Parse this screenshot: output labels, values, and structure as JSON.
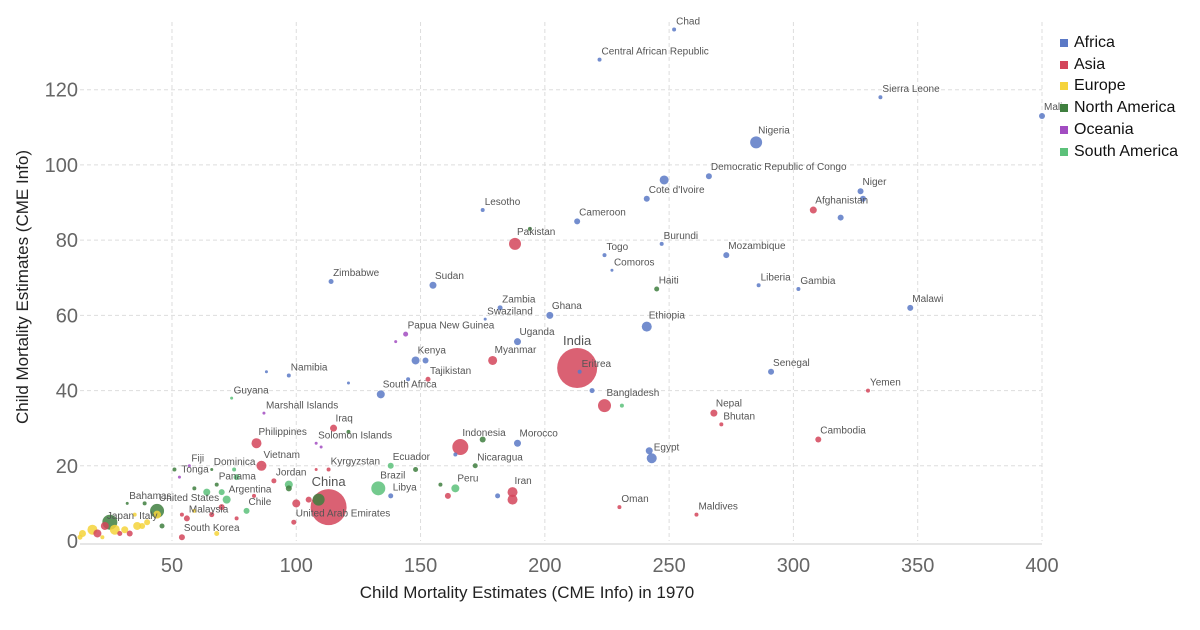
{
  "chart_data": {
    "type": "scatter",
    "title": "",
    "xlabel": "Child Mortality Estimates (CME Info) in 1970",
    "ylabel": "Child Mortality Estimates (CME Info)",
    "xlim": [
      13,
      400
    ],
    "ylim": [
      0,
      138
    ],
    "xticks": [
      50,
      100,
      150,
      200,
      250,
      300,
      350,
      400
    ],
    "yticks": [
      0,
      20,
      40,
      60,
      80,
      100,
      120
    ],
    "grid": true,
    "legend_position": "top-right",
    "colors": {
      "Africa": "#5b79c6",
      "Asia": "#d3455b",
      "Europe": "#f5d33b",
      "North America": "#3f7f3f",
      "Oceania": "#a24cc1",
      "South America": "#5cc17a"
    },
    "regions": [
      "Africa",
      "Asia",
      "Europe",
      "North America",
      "Oceania",
      "South America"
    ],
    "points": [
      {
        "label": "Chad",
        "x": 252,
        "y": 136,
        "region": "Africa",
        "size": 2
      },
      {
        "label": "Central African Republic",
        "x": 222,
        "y": 128,
        "region": "Africa",
        "size": 2
      },
      {
        "label": "Sierra Leone",
        "x": 335,
        "y": 118,
        "region": "Africa",
        "size": 2
      },
      {
        "label": "Mali",
        "x": 400,
        "y": 113,
        "region": "Africa",
        "size": 3
      },
      {
        "label": "Nigeria",
        "x": 285,
        "y": 106,
        "region": "Africa",
        "size": 6
      },
      {
        "label": "Democratic Republic of Congo",
        "x": 266,
        "y": 97,
        "region": "Africa",
        "size": 3
      },
      {
        "label": "",
        "x": 248,
        "y": 96,
        "region": "Africa",
        "size": 4.5
      },
      {
        "label": "Cote d'Ivoire",
        "x": 241,
        "y": 91,
        "region": "Africa",
        "size": 3
      },
      {
        "label": "Niger",
        "x": 327,
        "y": 93,
        "region": "Africa",
        "size": 3
      },
      {
        "label": "",
        "x": 328,
        "y": 91,
        "region": "Africa",
        "size": 3
      },
      {
        "label": "Afghanistan",
        "x": 308,
        "y": 88,
        "region": "Asia",
        "size": 3.5
      },
      {
        "label": "",
        "x": 319,
        "y": 86,
        "region": "Africa",
        "size": 3
      },
      {
        "label": "Lesotho",
        "x": 175,
        "y": 88,
        "region": "Africa",
        "size": 2
      },
      {
        "label": "Cameroon",
        "x": 213,
        "y": 85,
        "region": "Africa",
        "size": 3
      },
      {
        "label": "Pakistan",
        "x": 188,
        "y": 79,
        "region": "Asia",
        "size": 6
      },
      {
        "label": "",
        "x": 194,
        "y": 83,
        "region": "North America",
        "size": 2
      },
      {
        "label": "Burundi",
        "x": 247,
        "y": 79,
        "region": "Africa",
        "size": 2
      },
      {
        "label": "Togo",
        "x": 224,
        "y": 76,
        "region": "Africa",
        "size": 2
      },
      {
        "label": "Mozambique",
        "x": 273,
        "y": 76,
        "region": "Africa",
        "size": 3
      },
      {
        "label": "Comoros",
        "x": 227,
        "y": 72,
        "region": "Africa",
        "size": 1.5
      },
      {
        "label": "Zimbabwe",
        "x": 114,
        "y": 69,
        "region": "Africa",
        "size": 2.5
      },
      {
        "label": "Sudan",
        "x": 155,
        "y": 68,
        "region": "Africa",
        "size": 3.5
      },
      {
        "label": "Haiti",
        "x": 245,
        "y": 67,
        "region": "North America",
        "size": 2.5
      },
      {
        "label": "Liberia",
        "x": 286,
        "y": 68,
        "region": "Africa",
        "size": 2
      },
      {
        "label": "Gambia",
        "x": 302,
        "y": 67,
        "region": "Africa",
        "size": 2
      },
      {
        "label": "Zambia",
        "x": 182,
        "y": 62,
        "region": "Africa",
        "size": 2.5
      },
      {
        "label": "Swaziland",
        "x": 176,
        "y": 59,
        "region": "Africa",
        "size": 1.5
      },
      {
        "label": "Ghana",
        "x": 202,
        "y": 60,
        "region": "Africa",
        "size": 3.5
      },
      {
        "label": "Malawi",
        "x": 347,
        "y": 62,
        "region": "Africa",
        "size": 3
      },
      {
        "label": "Ethiopia",
        "x": 241,
        "y": 57,
        "region": "Africa",
        "size": 5
      },
      {
        "label": "Papua New Guinea",
        "x": 144,
        "y": 55,
        "region": "Oceania",
        "size": 2.5
      },
      {
        "label": "",
        "x": 140,
        "y": 53,
        "region": "Oceania",
        "size": 1.5
      },
      {
        "label": "Uganda",
        "x": 189,
        "y": 53,
        "region": "Africa",
        "size": 3.5
      },
      {
        "label": "Kenya",
        "x": 148,
        "y": 48,
        "region": "Africa",
        "size": 4
      },
      {
        "label": "",
        "x": 152,
        "y": 48,
        "region": "Africa",
        "size": 3
      },
      {
        "label": "Myanmar",
        "x": 179,
        "y": 48,
        "region": "Asia",
        "size": 4.5
      },
      {
        "label": "India",
        "x": 213,
        "y": 46,
        "region": "Asia",
        "size": 20
      },
      {
        "label": "Eritrea",
        "x": 214,
        "y": 45,
        "region": "Africa",
        "size": 2
      },
      {
        "label": "",
        "x": 88,
        "y": 45,
        "region": "Africa",
        "size": 1.5
      },
      {
        "label": "Namibia",
        "x": 97,
        "y": 44,
        "region": "Africa",
        "size": 2
      },
      {
        "label": "Tajikistan",
        "x": 153,
        "y": 43,
        "region": "Asia",
        "size": 2.5
      },
      {
        "label": "",
        "x": 145,
        "y": 43,
        "region": "Africa",
        "size": 2
      },
      {
        "label": "",
        "x": 121,
        "y": 42,
        "region": "Africa",
        "size": 1.5
      },
      {
        "label": "Senegal",
        "x": 291,
        "y": 45,
        "region": "Africa",
        "size": 3
      },
      {
        "label": "South Africa",
        "x": 134,
        "y": 39,
        "region": "Africa",
        "size": 4
      },
      {
        "label": "",
        "x": 219,
        "y": 40,
        "region": "Africa",
        "size": 2.5
      },
      {
        "label": "Bangladesh",
        "x": 224,
        "y": 36,
        "region": "Asia",
        "size": 6.5
      },
      {
        "label": "",
        "x": 231,
        "y": 36,
        "region": "South America",
        "size": 2
      },
      {
        "label": "Yemen",
        "x": 330,
        "y": 40,
        "region": "Asia",
        "size": 2
      },
      {
        "label": "Guyana",
        "x": 74,
        "y": 38,
        "region": "South America",
        "size": 1.5
      },
      {
        "label": "Marshall Islands",
        "x": 87,
        "y": 34,
        "region": "Oceania",
        "size": 1.5
      },
      {
        "label": "Nepal",
        "x": 268,
        "y": 34,
        "region": "Asia",
        "size": 3.5
      },
      {
        "label": "Bhutan",
        "x": 271,
        "y": 31,
        "region": "Asia",
        "size": 2
      },
      {
        "label": "Iraq",
        "x": 115,
        "y": 30,
        "region": "Asia",
        "size": 3.5
      },
      {
        "label": "",
        "x": 121,
        "y": 29,
        "region": "North America",
        "size": 2
      },
      {
        "label": "Cambodia",
        "x": 310,
        "y": 27,
        "region": "Asia",
        "size": 3
      },
      {
        "label": "Philippines",
        "x": 84,
        "y": 26,
        "region": "Asia",
        "size": 5
      },
      {
        "label": "Solomon Islands",
        "x": 108,
        "y": 26,
        "region": "Oceania",
        "size": 1.5
      },
      {
        "label": "",
        "x": 110,
        "y": 25,
        "region": "Oceania",
        "size": 1.5
      },
      {
        "label": "Indonesia",
        "x": 166,
        "y": 25,
        "region": "Asia",
        "size": 8
      },
      {
        "label": "",
        "x": 175,
        "y": 27,
        "region": "North America",
        "size": 3
      },
      {
        "label": "Morocco",
        "x": 189,
        "y": 26,
        "region": "Africa",
        "size": 3.5
      },
      {
        "label": "Egypt",
        "x": 243,
        "y": 22,
        "region": "Africa",
        "size": 5
      },
      {
        "label": "",
        "x": 242,
        "y": 24,
        "region": "Africa",
        "size": 3.5
      },
      {
        "label": "Fiji",
        "x": 57,
        "y": 20,
        "region": "Oceania",
        "size": 1.5
      },
      {
        "label": "Dominica",
        "x": 66,
        "y": 19,
        "region": "North America",
        "size": 1.5
      },
      {
        "label": "Vietnam",
        "x": 86,
        "y": 20,
        "region": "Asia",
        "size": 5
      },
      {
        "label": "Kyrgyzstan",
        "x": 113,
        "y": 19,
        "region": "Asia",
        "size": 2
      },
      {
        "label": "",
        "x": 108,
        "y": 19,
        "region": "Asia",
        "size": 1.5
      },
      {
        "label": "Ecuador",
        "x": 138,
        "y": 20,
        "region": "South America",
        "size": 3
      },
      {
        "label": "",
        "x": 148,
        "y": 19,
        "region": "North America",
        "size": 2.5
      },
      {
        "label": "Nicaragua",
        "x": 172,
        "y": 20,
        "region": "North America",
        "size": 2.5
      },
      {
        "label": "",
        "x": 164,
        "y": 23,
        "region": "Africa",
        "size": 2
      },
      {
        "label": "Tonga",
        "x": 53,
        "y": 17,
        "region": "Oceania",
        "size": 1.5
      },
      {
        "label": "",
        "x": 51,
        "y": 19,
        "region": "North America",
        "size": 2
      },
      {
        "label": "Panama",
        "x": 68,
        "y": 15,
        "region": "North America",
        "size": 2
      },
      {
        "label": "Jordan",
        "x": 91,
        "y": 16,
        "region": "Asia",
        "size": 2.5
      },
      {
        "label": "",
        "x": 75,
        "y": 19,
        "region": "South America",
        "size": 2
      },
      {
        "label": "",
        "x": 76,
        "y": 17,
        "region": "South America",
        "size": 3
      },
      {
        "label": "",
        "x": 97,
        "y": 15,
        "region": "South America",
        "size": 4
      },
      {
        "label": "",
        "x": 97,
        "y": 14,
        "region": "North America",
        "size": 3
      },
      {
        "label": "",
        "x": 59,
        "y": 14,
        "region": "North America",
        "size": 2
      },
      {
        "label": "",
        "x": 64,
        "y": 13,
        "region": "South America",
        "size": 3.5
      },
      {
        "label": "",
        "x": 70,
        "y": 13,
        "region": "South America",
        "size": 3
      },
      {
        "label": "Peru",
        "x": 164,
        "y": 14,
        "region": "South America",
        "size": 4
      },
      {
        "label": "",
        "x": 158,
        "y": 15,
        "region": "North America",
        "size": 2
      },
      {
        "label": "Brazil",
        "x": 133,
        "y": 14,
        "region": "South America",
        "size": 7
      },
      {
        "label": "Libya",
        "x": 138,
        "y": 12,
        "region": "Africa",
        "size": 2.5
      },
      {
        "label": "",
        "x": 161,
        "y": 12,
        "region": "Asia",
        "size": 3
      },
      {
        "label": "Iran",
        "x": 187,
        "y": 13,
        "region": "Asia",
        "size": 5
      },
      {
        "label": "",
        "x": 187,
        "y": 11,
        "region": "Asia",
        "size": 5
      },
      {
        "label": "",
        "x": 181,
        "y": 12,
        "region": "Africa",
        "size": 2.5
      },
      {
        "label": "Argentina",
        "x": 72,
        "y": 11,
        "region": "South America",
        "size": 4
      },
      {
        "label": "",
        "x": 83,
        "y": 12,
        "region": "Asia",
        "size": 2
      },
      {
        "label": "China",
        "x": 113,
        "y": 9,
        "region": "Asia",
        "size": 18
      },
      {
        "label": "",
        "x": 109,
        "y": 11,
        "region": "North America",
        "size": 6
      },
      {
        "label": "",
        "x": 105,
        "y": 11,
        "region": "Asia",
        "size": 3
      },
      {
        "label": "",
        "x": 100,
        "y": 10,
        "region": "Asia",
        "size": 4
      },
      {
        "label": "Oman",
        "x": 230,
        "y": 9,
        "region": "Asia",
        "size": 2
      },
      {
        "label": "Bahamas",
        "x": 32,
        "y": 10,
        "region": "North America",
        "size": 1.5
      },
      {
        "label": "",
        "x": 39,
        "y": 10,
        "region": "North America",
        "size": 2
      },
      {
        "label": "Chile",
        "x": 80,
        "y": 8,
        "region": "South America",
        "size": 3
      },
      {
        "label": "United Arab Emirates",
        "x": 99,
        "y": 5,
        "region": "Asia",
        "size": 2.5
      },
      {
        "label": "Maldives",
        "x": 261,
        "y": 7,
        "region": "Asia",
        "size": 2
      },
      {
        "label": "Malaysia",
        "x": 56,
        "y": 6,
        "region": "Asia",
        "size": 3
      },
      {
        "label": "",
        "x": 66,
        "y": 7,
        "region": "Asia",
        "size": 2.5
      },
      {
        "label": "",
        "x": 70,
        "y": 9,
        "region": "Asia",
        "size": 3
      },
      {
        "label": "",
        "x": 76,
        "y": 6,
        "region": "Asia",
        "size": 2
      },
      {
        "label": "",
        "x": 54,
        "y": 7,
        "region": "Asia",
        "size": 2
      },
      {
        "label": "",
        "x": 59,
        "y": 8,
        "region": "Europe",
        "size": 2
      },
      {
        "label": "United States",
        "x": 44,
        "y": 8,
        "region": "North America",
        "size": 7
      },
      {
        "label": "",
        "x": 44,
        "y": 7,
        "region": "Europe",
        "size": 4
      },
      {
        "label": "Japan",
        "x": 23,
        "y": 4,
        "region": "Asia",
        "size": 4
      },
      {
        "label": "Italy",
        "x": 36,
        "y": 4,
        "region": "Europe",
        "size": 4
      },
      {
        "label": "",
        "x": 25,
        "y": 5,
        "region": "North America",
        "size": 7.5
      },
      {
        "label": "",
        "x": 18,
        "y": 3,
        "region": "Europe",
        "size": 5
      },
      {
        "label": "",
        "x": 14,
        "y": 2,
        "region": "Europe",
        "size": 3.5
      },
      {
        "label": "",
        "x": 20,
        "y": 2,
        "region": "Asia",
        "size": 4
      },
      {
        "label": "",
        "x": 27,
        "y": 3,
        "region": "Europe",
        "size": 5
      },
      {
        "label": "",
        "x": 31,
        "y": 3,
        "region": "Europe",
        "size": 3.5
      },
      {
        "label": "",
        "x": 33,
        "y": 2,
        "region": "Asia",
        "size": 3
      },
      {
        "label": "",
        "x": 29,
        "y": 2,
        "region": "Asia",
        "size": 2.5
      },
      {
        "label": "",
        "x": 38,
        "y": 4,
        "region": "Europe",
        "size": 3
      },
      {
        "label": "",
        "x": 40,
        "y": 5,
        "region": "Europe",
        "size": 3
      },
      {
        "label": "",
        "x": 46,
        "y": 4,
        "region": "North America",
        "size": 2.5
      },
      {
        "label": "",
        "x": 22,
        "y": 1,
        "region": "Europe",
        "size": 2
      },
      {
        "label": "",
        "x": 13,
        "y": 1,
        "region": "Europe",
        "size": 2.5
      },
      {
        "label": "",
        "x": 35,
        "y": 7,
        "region": "Europe",
        "size": 2
      },
      {
        "label": "South Korea",
        "x": 54,
        "y": 1,
        "region": "Asia",
        "size": 3
      },
      {
        "label": "",
        "x": 68,
        "y": 2,
        "region": "Europe",
        "size": 2.5
      }
    ],
    "big_labels": [
      "India",
      "China"
    ]
  }
}
